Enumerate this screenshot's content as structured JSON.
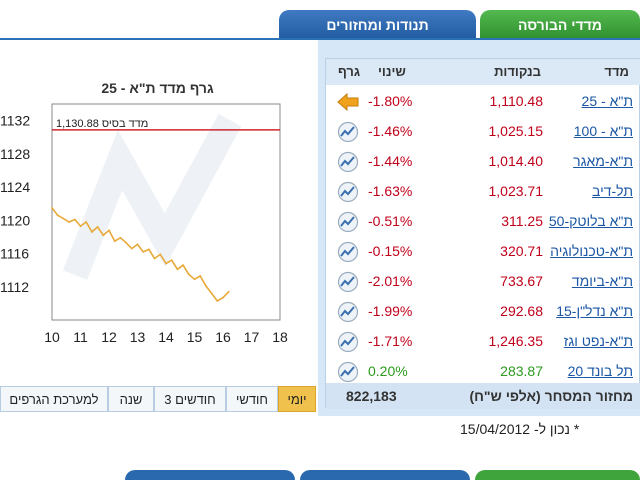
{
  "tabs": [
    {
      "label": "מדדי הבורסה",
      "active": true
    },
    {
      "label": "תנודות ומחזורים",
      "active": false
    }
  ],
  "chart": {
    "title": "גרף מדד ת\"א - 25",
    "base_label": "1,130.88 מדד בסיס"
  },
  "chart_data": {
    "type": "line",
    "title": "גרף מדד ת\"א - 25",
    "xlabel": "",
    "ylabel": "",
    "x_ticks": [
      "10",
      "11",
      "12",
      "13",
      "14",
      "15",
      "16",
      "17",
      "18"
    ],
    "y_ticks": [
      "1112",
      "1116",
      "1120",
      "1124",
      "1128",
      "1132"
    ],
    "xlim": [
      10,
      18
    ],
    "ylim": [
      1108,
      1134
    ],
    "base_value": 1130.88,
    "series": [
      {
        "color": "#e8a93a",
        "x": [
          10.0,
          10.2,
          10.4,
          10.6,
          10.8,
          11.0,
          11.2,
          11.4,
          11.6,
          11.8,
          12.0,
          12.2,
          12.4,
          12.6,
          12.8,
          13.0,
          13.2,
          13.4,
          13.6,
          13.8,
          14.0,
          14.2,
          14.4,
          14.6,
          14.8,
          15.0,
          15.2,
          15.4,
          15.6,
          15.8,
          16.0,
          16.2
        ],
        "y": [
          1121.5,
          1120.6,
          1120.2,
          1119.8,
          1120.1,
          1119.3,
          1119.8,
          1118.6,
          1119.2,
          1118.2,
          1118.8,
          1117.5,
          1117.9,
          1117.3,
          1116.6,
          1117.1,
          1116.2,
          1116.5,
          1115.4,
          1115.9,
          1114.8,
          1115.2,
          1114.1,
          1114.6,
          1113.5,
          1112.9,
          1113.3,
          1112.1,
          1111.2,
          1110.3,
          1110.7,
          1111.4
        ]
      }
    ],
    "grid": false
  },
  "range_buttons": [
    {
      "label": "יומי",
      "active": true
    },
    {
      "label": "חודשי",
      "active": false
    },
    {
      "label": "3 חודשים",
      "active": false
    },
    {
      "label": "שנה",
      "active": false
    },
    {
      "label": "למערכת הגרפים",
      "active": false
    }
  ],
  "table": {
    "headers": {
      "index": "מדד",
      "points": "בנקודות",
      "change": "שינוי",
      "graph": "גרף"
    },
    "rows": [
      {
        "name": "ת\"א - 25",
        "points": "1,110.48",
        "change": "-1.80%",
        "icon": "arrow-left-icon",
        "up": false
      },
      {
        "name": "ת\"א - 100",
        "points": "1,025.15",
        "change": "-1.46%",
        "icon": "chart-icon",
        "up": false
      },
      {
        "name": "ת\"א-מאגר",
        "points": "1,014.40",
        "change": "-1.44%",
        "icon": "chart-icon",
        "up": false
      },
      {
        "name": "תל-דיב",
        "points": "1,023.71",
        "change": "-1.63%",
        "icon": "chart-icon",
        "up": false
      },
      {
        "name": "ת\"א בלוטק-50",
        "points": "311.25",
        "change": "-0.51%",
        "icon": "chart-icon",
        "up": false
      },
      {
        "name": "ת\"א-טכנולוגיה",
        "points": "320.71",
        "change": "-0.15%",
        "icon": "chart-icon",
        "up": false
      },
      {
        "name": "ת\"א-ביומד",
        "points": "733.67",
        "change": "-2.01%",
        "icon": "chart-icon",
        "up": false
      },
      {
        "name": "ת\"א נדל\"ן-15",
        "points": "292.68",
        "change": "-1.99%",
        "icon": "chart-icon",
        "up": false
      },
      {
        "name": "ת\"א-נפט וגז",
        "points": "1,246.35",
        "change": "-1.71%",
        "icon": "chart-icon",
        "up": false
      },
      {
        "name": "תל בונד 20",
        "points": "283.87",
        "change": "0.20%",
        "icon": "chart-icon",
        "up": true
      }
    ],
    "turnover_label": "מחזור המסחר (אלפי ש\"ח)",
    "turnover_value": "822,183"
  },
  "asof": "* נכון ל- 15/04/2012",
  "colors": {
    "accent_blue": "#215aa0",
    "accent_green": "#2f8f2e",
    "negative": "#c0001a",
    "positive": "#2d9a1e",
    "base_line": "#d0242e"
  }
}
